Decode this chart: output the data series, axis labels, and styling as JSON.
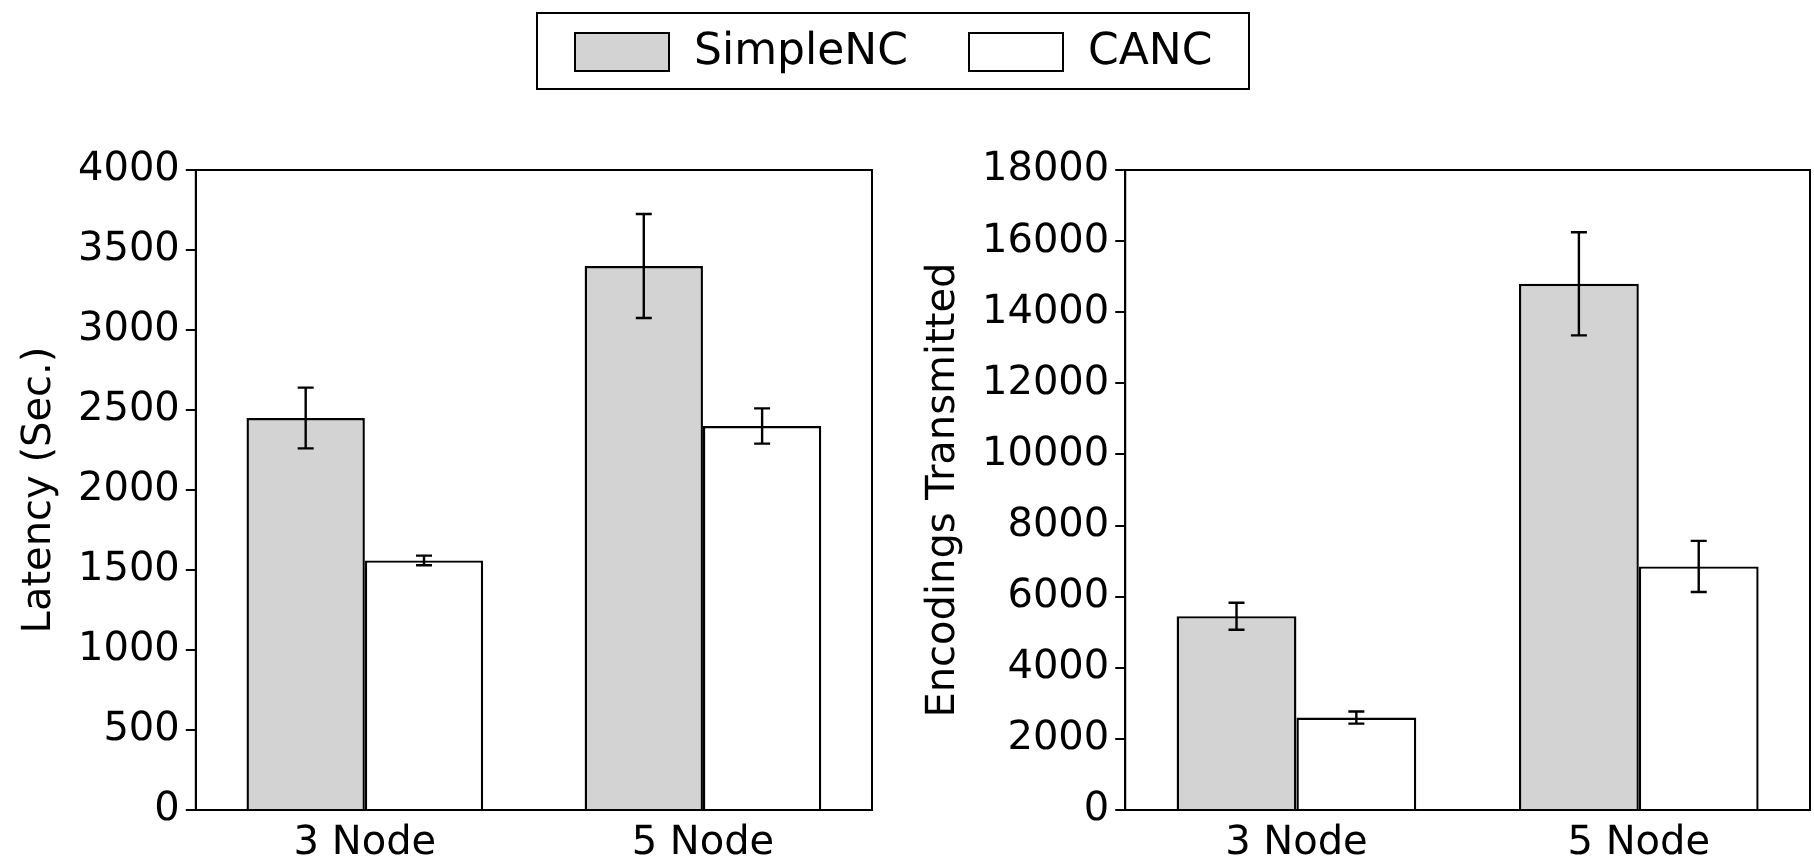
{
  "chart_data": [
    {
      "type": "bar",
      "ylabel": "Latency (Sec.)",
      "categories": [
        "3 Node",
        "5 Node"
      ],
      "series": [
        {
          "name": "SimpleNC",
          "color": "#d3d3d3",
          "values": [
            2450,
            3400
          ],
          "errors": [
            190,
            325
          ]
        },
        {
          "name": "CANC",
          "color": "#ffffff",
          "values": [
            1560,
            2400
          ],
          "errors": [
            30,
            110
          ]
        }
      ],
      "ylim": [
        0,
        4000
      ],
      "yticks": [
        0,
        500,
        1000,
        1500,
        2000,
        2500,
        3000,
        3500,
        4000
      ],
      "grid": false,
      "legend": "top"
    },
    {
      "type": "bar",
      "ylabel": "Encodings Transmitted",
      "categories": [
        "3 Node",
        "5 Node"
      ],
      "series": [
        {
          "color": "#d3d3d3",
          "values": [
            5450,
            14800
          ],
          "errors": [
            380,
            1450
          ]
        },
        {
          "color": "#ffffff",
          "values": [
            2600,
            6850
          ],
          "errors": [
            170,
            720
          ]
        }
      ],
      "ylim": [
        0,
        18000
      ],
      "yticks": [
        0,
        2000,
        4000,
        6000,
        8000,
        10000,
        12000,
        14000,
        16000,
        18000
      ],
      "grid": false
    }
  ]
}
